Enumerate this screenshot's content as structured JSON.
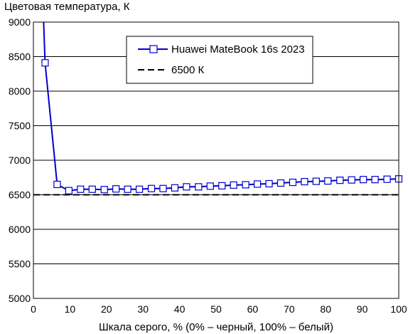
{
  "chart_data": {
    "type": "line",
    "ylabel": "Цветовая температура, К",
    "xlabel": "Шкала серого, % (0% – черный, 100% – белый)",
    "xlim": [
      0,
      100
    ],
    "ylim": [
      5000,
      9000
    ],
    "xticks": [
      0,
      10,
      20,
      30,
      40,
      50,
      60,
      70,
      80,
      90,
      100
    ],
    "yticks": [
      5000,
      5500,
      6000,
      6500,
      7000,
      7500,
      8000,
      8500,
      9000
    ],
    "grid": "horizontal",
    "legend_position": "top-center",
    "series": [
      {
        "name": "Huawei MateBook 16s 2023",
        "color": "#0000cc",
        "marker": "square",
        "line_start": {
          "x": 2.8,
          "y": 9000
        },
        "points": [
          {
            "x": 3.2,
            "y": 8410
          },
          {
            "x": 6.5,
            "y": 6650
          },
          {
            "x": 9.7,
            "y": 6560
          },
          {
            "x": 12.9,
            "y": 6580
          },
          {
            "x": 16.1,
            "y": 6580
          },
          {
            "x": 19.4,
            "y": 6575
          },
          {
            "x": 22.6,
            "y": 6585
          },
          {
            "x": 25.8,
            "y": 6580
          },
          {
            "x": 29.0,
            "y": 6580
          },
          {
            "x": 32.3,
            "y": 6590
          },
          {
            "x": 35.5,
            "y": 6590
          },
          {
            "x": 38.7,
            "y": 6600
          },
          {
            "x": 41.9,
            "y": 6615
          },
          {
            "x": 45.2,
            "y": 6615
          },
          {
            "x": 48.4,
            "y": 6625
          },
          {
            "x": 51.6,
            "y": 6630
          },
          {
            "x": 54.8,
            "y": 6640
          },
          {
            "x": 58.1,
            "y": 6645
          },
          {
            "x": 61.3,
            "y": 6655
          },
          {
            "x": 64.5,
            "y": 6660
          },
          {
            "x": 67.7,
            "y": 6670
          },
          {
            "x": 71.0,
            "y": 6680
          },
          {
            "x": 74.2,
            "y": 6690
          },
          {
            "x": 77.4,
            "y": 6695
          },
          {
            "x": 80.6,
            "y": 6700
          },
          {
            "x": 83.9,
            "y": 6710
          },
          {
            "x": 87.1,
            "y": 6715
          },
          {
            "x": 90.3,
            "y": 6720
          },
          {
            "x": 93.5,
            "y": 6720
          },
          {
            "x": 96.8,
            "y": 6725
          },
          {
            "x": 100.0,
            "y": 6730
          }
        ]
      },
      {
        "name": "6500 К",
        "color": "#000000",
        "style": "dashed",
        "points": [
          {
            "x": 0,
            "y": 6500
          },
          {
            "x": 100,
            "y": 6500
          }
        ]
      }
    ]
  }
}
